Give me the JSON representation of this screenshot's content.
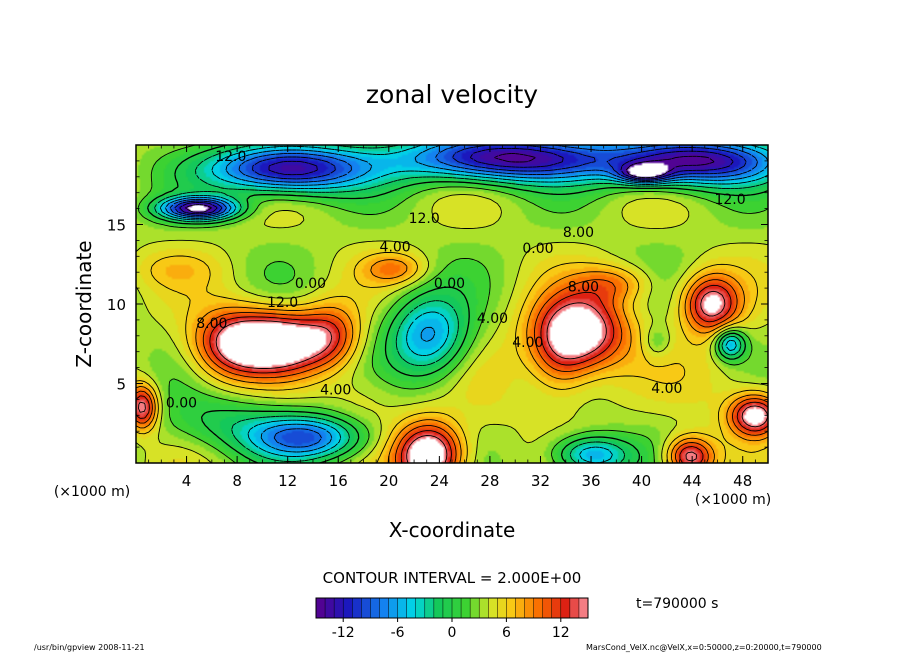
{
  "chart_data": {
    "type": "heatmap",
    "title": "zonal velocity",
    "xlabel": "X-coordinate",
    "ylabel": "Z-coordinate",
    "x_unit_left": "(×1000 m)",
    "x_unit_right": "(×1000 m)",
    "xlim": [
      0,
      50
    ],
    "ylim": [
      0,
      20
    ],
    "x_ticks": [
      4,
      8,
      12,
      16,
      20,
      24,
      28,
      32,
      36,
      40,
      44,
      48
    ],
    "y_ticks": [
      5,
      10,
      15
    ],
    "contour_interval_text": "CONTOUR INTERVAL = 2.000E+00",
    "time_text": "t=790000 s",
    "colorbar": {
      "min": -15,
      "max": 15,
      "ticks": [
        -12,
        -6,
        0,
        6,
        12
      ]
    },
    "contour_labels": [
      {
        "text": "12.0",
        "x": 7.5,
        "y": 19.0
      },
      {
        "text": "12.0",
        "x": 22.8,
        "y": 15.1
      },
      {
        "text": "12.0",
        "x": 47.0,
        "y": 16.3
      },
      {
        "text": "8.00",
        "x": 35.0,
        "y": 14.2
      },
      {
        "text": "4.00",
        "x": 20.5,
        "y": 13.3
      },
      {
        "text": "0.00",
        "x": 31.8,
        "y": 13.2
      },
      {
        "text": "0.00",
        "x": 13.8,
        "y": 11.0
      },
      {
        "text": "0.00",
        "x": 24.8,
        "y": 11.0
      },
      {
        "text": "8.00",
        "x": 35.4,
        "y": 10.8
      },
      {
        "text": "12.0",
        "x": 11.6,
        "y": 9.8
      },
      {
        "text": "8.00",
        "x": 6.0,
        "y": 8.5
      },
      {
        "text": "4.00",
        "x": 28.2,
        "y": 8.8
      },
      {
        "text": "4.00",
        "x": 31.0,
        "y": 7.3
      },
      {
        "text": "4.00",
        "x": 15.8,
        "y": 4.3
      },
      {
        "text": "0.00",
        "x": 3.6,
        "y": 3.5
      },
      {
        "text": "4.00",
        "x": 42.0,
        "y": 4.4
      }
    ],
    "features": [
      {
        "x": 11.0,
        "y": 7.6,
        "value": 16,
        "sx": 4.5,
        "sy": 1.9
      },
      {
        "x": 7.2,
        "y": 7.4,
        "value": 6,
        "sx": 3.0,
        "sy": 2.4
      },
      {
        "x": 15.5,
        "y": 8.2,
        "value": 5,
        "sx": 2.2,
        "sy": 2.0
      },
      {
        "x": 35.2,
        "y": 8.3,
        "value": 14,
        "sx": 3.6,
        "sy": 2.4
      },
      {
        "x": 33.5,
        "y": 6.5,
        "value": 5,
        "sx": 2.4,
        "sy": 2.6
      },
      {
        "x": 23.2,
        "y": 8.0,
        "value": -10,
        "sx": 3.2,
        "sy": 2.6
      },
      {
        "x": 23.2,
        "y": 0.5,
        "value": 16,
        "sx": 2.6,
        "sy": 2.0
      },
      {
        "x": 13.5,
        "y": 1.6,
        "value": -12,
        "sx": 4.5,
        "sy": 1.4
      },
      {
        "x": 7.0,
        "y": 2.6,
        "value": -4,
        "sx": 5.0,
        "sy": 1.8
      },
      {
        "x": 36.0,
        "y": 0.5,
        "value": -10,
        "sx": 3.0,
        "sy": 1.2
      },
      {
        "x": 43.8,
        "y": 0.4,
        "value": 12,
        "sx": 1.8,
        "sy": 1.2
      },
      {
        "x": 49.0,
        "y": 3.0,
        "value": 13,
        "sx": 2.0,
        "sy": 1.3
      },
      {
        "x": 45.5,
        "y": 10.0,
        "value": 12,
        "sx": 2.2,
        "sy": 1.8
      },
      {
        "x": 47.0,
        "y": 7.5,
        "value": -10,
        "sx": 1.2,
        "sy": 1.0
      },
      {
        "x": 41.2,
        "y": 7.6,
        "value": -3,
        "sx": 1.1,
        "sy": 1.0
      },
      {
        "x": 0.5,
        "y": 3.5,
        "value": 12,
        "sx": 1.2,
        "sy": 1.4
      },
      {
        "x": 28.5,
        "y": 5.0,
        "value": 1,
        "sx": 3.0,
        "sy": 4.0
      },
      {
        "x": 46.0,
        "y": 5.5,
        "value": 2,
        "sx": 4.0,
        "sy": 3.0
      },
      {
        "x": 18.0,
        "y": 4.0,
        "value": 2,
        "sx": 3.0,
        "sy": 2.0
      },
      {
        "x": 3.0,
        "y": 12.2,
        "value": 2,
        "sx": 4.0,
        "sy": 1.2
      },
      {
        "x": 20.5,
        "y": 12.2,
        "value": 5,
        "sx": 2.5,
        "sy": 1.0
      },
      {
        "x": 38.0,
        "y": 11.3,
        "value": 5,
        "sx": 3.0,
        "sy": 1.2
      },
      {
        "x": 12.0,
        "y": 18.5,
        "value": -18,
        "sx": 6.0,
        "sy": 1.5
      },
      {
        "x": 44.0,
        "y": 19.0,
        "value": -18,
        "sx": 7.0,
        "sy": 1.5
      },
      {
        "x": 29.0,
        "y": 19.2,
        "value": -18,
        "sx": 8.0,
        "sy": 1.5
      },
      {
        "x": 5.0,
        "y": 16.0,
        "value": -18,
        "sx": 3.0,
        "sy": 0.7
      },
      {
        "x": 40.2,
        "y": 18.2,
        "value": -12,
        "sx": 2.0,
        "sy": 0.6
      }
    ],
    "grid": false,
    "colormap": "rainbow"
  },
  "footer": {
    "left": "/usr/bin/gpview  2008-11-21",
    "right": "MarsCond_VelX.nc@VelX,x=0:50000,z=0:20000,t=790000"
  }
}
